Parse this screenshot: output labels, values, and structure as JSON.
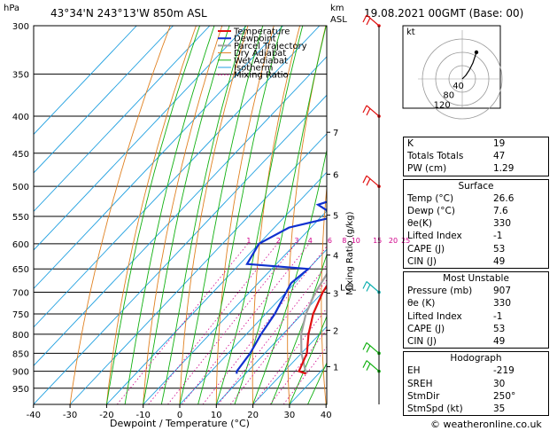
{
  "header": {
    "location": "43°34'N 243°13'W 850m ASL",
    "datetime": "19.08.2021 00GMT (Base: 00)",
    "hpa_label": "hPa",
    "km_label": "km",
    "asl_label": "ASL"
  },
  "legend": [
    "Temperature",
    "Dewpoint",
    "Parcel Trajectory",
    "Dry Adiabat",
    "Wet Adiabat",
    "Isotherm",
    "Mixing Ratio"
  ],
  "colors": {
    "temperature": "#e01010",
    "dewpoint": "#1030d0",
    "parcel": "#a0a0a0",
    "dry_adiabat": "#e08020",
    "wet_adiabat": "#10b010",
    "isotherm": "#20a0e0",
    "mixing_ratio": "#d0008a"
  },
  "chart_data": {
    "type": "skew-t",
    "xlabel": "Dewpoint / Temperature (°C)",
    "ylabel": "hPa",
    "right_axis_label": "Mixing Ratio (g/kg)",
    "x_ticks": [
      -40,
      -30,
      -20,
      -10,
      0,
      10,
      20,
      30,
      40
    ],
    "p_ticks": [
      300,
      350,
      400,
      450,
      500,
      550,
      600,
      650,
      700,
      750,
      800,
      850,
      900,
      950
    ],
    "km_ticks": [
      {
        "km": "1",
        "p": 887
      },
      {
        "km": "2",
        "p": 790
      },
      {
        "km": "3",
        "p": 702
      },
      {
        "km": "4",
        "p": 622
      },
      {
        "km": "5",
        "p": 548
      },
      {
        "km": "6",
        "p": 481
      },
      {
        "km": "7",
        "p": 421
      }
    ],
    "lcl": {
      "label": "LCL",
      "p": 690
    },
    "mixing_ratio_labels": [
      "1",
      "2",
      "3",
      "4",
      "6",
      "8",
      "10",
      "15",
      "20",
      "25"
    ],
    "temperature": [
      [
        907,
        26.6
      ],
      [
        900,
        24
      ],
      [
        850,
        21.5
      ],
      [
        800,
        17
      ],
      [
        750,
        13
      ],
      [
        700,
        10
      ],
      [
        650,
        8
      ],
      [
        600,
        4
      ],
      [
        550,
        0
      ],
      [
        500,
        -5
      ],
      [
        450,
        -9
      ],
      [
        400,
        -16
      ],
      [
        350,
        -22
      ],
      [
        300,
        -30
      ]
    ],
    "dewpoint": [
      [
        907,
        7.6
      ],
      [
        900,
        7
      ],
      [
        850,
        6
      ],
      [
        800,
        4
      ],
      [
        750,
        2.5
      ],
      [
        700,
        0
      ],
      [
        680,
        -1
      ],
      [
        650,
        0
      ],
      [
        640,
        -18
      ],
      [
        600,
        -20
      ],
      [
        570,
        -16
      ],
      [
        550,
        -6
      ],
      [
        530,
        -14
      ],
      [
        500,
        -3
      ],
      [
        490,
        -12
      ],
      [
        450,
        -15
      ],
      [
        400,
        -18
      ],
      [
        380,
        -15
      ],
      [
        350,
        -14
      ],
      [
        300,
        -13
      ]
    ],
    "parcel": [
      [
        907,
        26.6
      ],
      [
        850,
        20
      ],
      [
        800,
        15
      ],
      [
        750,
        11
      ],
      [
        700,
        8
      ],
      [
        650,
        6
      ],
      [
        600,
        3
      ],
      [
        550,
        0
      ],
      [
        500,
        -4
      ],
      [
        450,
        -9
      ],
      [
        400,
        -15
      ],
      [
        350,
        -23
      ],
      [
        300,
        -32
      ]
    ],
    "wind_barbs": [
      {
        "p": 300,
        "color": "#e01010"
      },
      {
        "p": 400,
        "color": "#e01010"
      },
      {
        "p": 500,
        "color": "#e01010"
      },
      {
        "p": 700,
        "color": "#10b0b0"
      },
      {
        "p": 850,
        "color": "#10b010"
      },
      {
        "p": 900,
        "color": "#10b010"
      }
    ]
  },
  "hodograph": {
    "unit": "kt",
    "rings": [
      "40",
      "80",
      "120"
    ]
  },
  "indices": [
    {
      "label": "K",
      "value": "19"
    },
    {
      "label": "Totals Totals",
      "value": "47"
    },
    {
      "label": "PW (cm)",
      "value": "1.29"
    }
  ],
  "surface": {
    "title": "Surface",
    "rows": [
      {
        "label": "Temp (°C)",
        "value": "26.6"
      },
      {
        "label": "Dewp (°C)",
        "value": "7.6"
      },
      {
        "label": "θe(K)",
        "value": "330"
      },
      {
        "label": "Lifted Index",
        "value": "-1"
      },
      {
        "label": "CAPE (J)",
        "value": "53"
      },
      {
        "label": "CIN (J)",
        "value": "49"
      }
    ]
  },
  "most_unstable": {
    "title": "Most Unstable",
    "rows": [
      {
        "label": "Pressure (mb)",
        "value": "907"
      },
      {
        "label": "θe (K)",
        "value": "330"
      },
      {
        "label": "Lifted Index",
        "value": "-1"
      },
      {
        "label": "CAPE (J)",
        "value": "53"
      },
      {
        "label": "CIN (J)",
        "value": "49"
      }
    ]
  },
  "hodo_table": {
    "title": "Hodograph",
    "rows": [
      {
        "label": "EH",
        "value": "-219"
      },
      {
        "label": "SREH",
        "value": "30"
      },
      {
        "label": "StmDir",
        "value": "250°"
      },
      {
        "label": "StmSpd (kt)",
        "value": "35"
      }
    ]
  },
  "footer": "© weatheronline.co.uk"
}
